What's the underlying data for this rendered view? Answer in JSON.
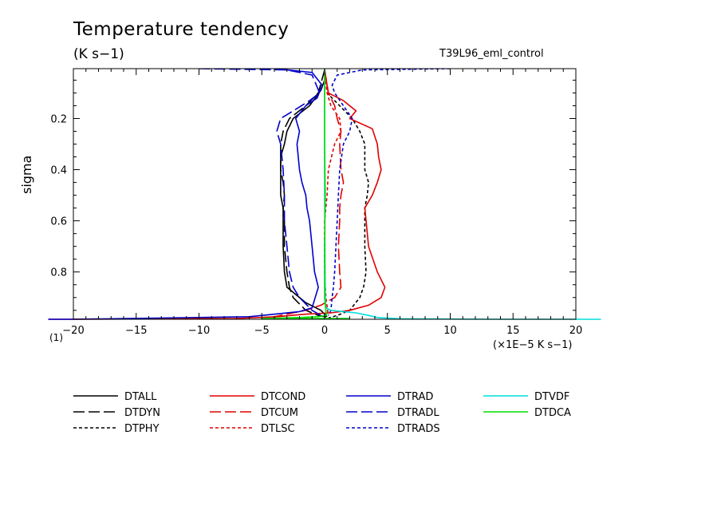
{
  "chart_data": {
    "type": "line",
    "title": "Temperature tendency",
    "units_label": "(K s−1)",
    "run_label": "T39L96_eml_control",
    "ylabel": "sigma",
    "xlabel": "(×1E−5 K s−1)",
    "footnote": "(1)",
    "xlim": [
      -20,
      22
    ],
    "ylim": [
      0.985,
      0.005
    ],
    "x_ticks": [
      -20,
      -15,
      -10,
      -5,
      0,
      5,
      10,
      15,
      20
    ],
    "x_tick_labels": [
      "−20",
      "−15",
      "−10",
      "−5",
      "0",
      "5",
      "10",
      "15",
      "20"
    ],
    "y_ticks": [
      0.2,
      0.4,
      0.6,
      0.8
    ],
    "y_tick_labels": [
      "0.2",
      "0.4",
      "0.6",
      "0.8"
    ],
    "legend_position": "bottom",
    "series": [
      {
        "name": "DTALL",
        "color": "#000000",
        "dash": "solid",
        "x": [
          0,
          0,
          -0.3,
          -1.2,
          -2.5,
          -3,
          -3.2,
          -3.5,
          -3.5,
          -3.5,
          -3.5,
          -3.3,
          -3.3,
          -3.3,
          -3.2,
          -3,
          -1.5,
          -0.3,
          0.2
        ],
        "y": [
          0.01,
          0.05,
          0.09,
          0.15,
          0.2,
          0.25,
          0.3,
          0.35,
          0.4,
          0.45,
          0.5,
          0.55,
          0.6,
          0.7,
          0.8,
          0.86,
          0.92,
          0.95,
          0.975
        ]
      },
      {
        "name": "DTDYN",
        "color": "#000000",
        "dash": "long",
        "x": [
          0,
          -0.5,
          -1.5,
          -2.8,
          -3.3,
          -3.5,
          -3.5,
          -3.3,
          -3.2,
          -3.3,
          -3.2,
          -3.2,
          -3,
          -2.8,
          -2.5,
          -1.5,
          -0.5,
          0.5
        ],
        "y": [
          0.01,
          0.1,
          0.15,
          0.2,
          0.25,
          0.3,
          0.4,
          0.45,
          0.5,
          0.55,
          0.6,
          0.7,
          0.8,
          0.86,
          0.9,
          0.95,
          0.97,
          0.98
        ]
      },
      {
        "name": "DTPHY",
        "color": "#000000",
        "dash": "short",
        "x": [
          0,
          0.2,
          1.2,
          2.2,
          2.8,
          3.2,
          3.2,
          3.5,
          3.4,
          3.2,
          3.2,
          3.2,
          3.3,
          3.1,
          2.8,
          2,
          1,
          0.3
        ],
        "y": [
          0.01,
          0.1,
          0.15,
          0.2,
          0.25,
          0.3,
          0.4,
          0.45,
          0.5,
          0.55,
          0.6,
          0.7,
          0.8,
          0.86,
          0.9,
          0.95,
          0.97,
          0.98
        ]
      },
      {
        "name": "DTCOND",
        "color": "#e00000",
        "dash": "solid",
        "x": [
          0,
          0.3,
          1.5,
          2.5,
          2,
          3.8,
          4.2,
          4.3,
          4.5,
          4.2,
          3.8,
          3.2,
          3.3,
          3.5,
          4.2,
          4.8,
          4.5,
          3.5,
          2,
          0.5,
          -1.5,
          -3.8,
          -7,
          -20,
          -22
        ],
        "y": [
          0.01,
          0.1,
          0.13,
          0.17,
          0.2,
          0.24,
          0.3,
          0.35,
          0.4,
          0.45,
          0.5,
          0.55,
          0.6,
          0.7,
          0.8,
          0.86,
          0.9,
          0.93,
          0.95,
          0.96,
          0.965,
          0.975,
          0.982,
          0.985,
          0.985
        ]
      },
      {
        "name": "DTCUM",
        "color": "#e00000",
        "dash": "long",
        "x": [
          0,
          0.3,
          0.8,
          1,
          1.3,
          1.2,
          1.3,
          1.5,
          1.3,
          1.2,
          1.2,
          1.1,
          1.2,
          1.3,
          0.8,
          -0.3,
          -1.5,
          -2.5,
          -4,
          -4.5
        ],
        "y": [
          0.01,
          0.1,
          0.15,
          0.2,
          0.25,
          0.3,
          0.4,
          0.45,
          0.5,
          0.55,
          0.6,
          0.7,
          0.8,
          0.86,
          0.9,
          0.93,
          0.95,
          0.96,
          0.975,
          0.985
        ]
      },
      {
        "name": "DTLSC",
        "color": "#e00000",
        "dash": "short",
        "x": [
          0,
          0.2,
          0.5,
          1.2,
          1.3,
          0.8,
          0.3,
          0.2,
          0,
          0,
          0.1,
          0.3
        ],
        "y": [
          0.01,
          0.1,
          0.15,
          0.2,
          0.25,
          0.3,
          0.4,
          0.5,
          0.6,
          0.8,
          0.9,
          0.97
        ]
      },
      {
        "name": "DTRAD",
        "color": "#0000cc",
        "dash": "solid",
        "x": [
          -4,
          -1,
          -0.2,
          -0.6,
          -1.5,
          -2.3,
          -2,
          -2.2,
          -2,
          -1.8,
          -1.5,
          -1.4,
          -1.2,
          -1,
          -0.8,
          -0.5,
          -1,
          -2,
          -6,
          -20,
          -22
        ],
        "y": [
          0.005,
          0.02,
          0.07,
          0.12,
          0.15,
          0.2,
          0.25,
          0.3,
          0.4,
          0.45,
          0.5,
          0.55,
          0.6,
          0.7,
          0.8,
          0.86,
          0.94,
          0.955,
          0.975,
          0.985,
          0.985
        ]
      },
      {
        "name": "DTRADL",
        "color": "#0000cc",
        "dash": "long",
        "x": [
          -10,
          -3,
          -1,
          -0.4,
          -1.2,
          -2.5,
          -3.5,
          -3.8,
          -3.5,
          -3.3,
          -3.2,
          -3.2,
          -3,
          -2.8,
          -2.5,
          -2,
          -1,
          -0.3
        ],
        "y": [
          0.005,
          0.01,
          0.03,
          0.1,
          0.13,
          0.17,
          0.2,
          0.25,
          0.3,
          0.4,
          0.5,
          0.6,
          0.7,
          0.8,
          0.86,
          0.9,
          0.95,
          0.97
        ]
      },
      {
        "name": "DTRADS",
        "color": "#0000cc",
        "dash": "short",
        "x": [
          10,
          3,
          1,
          0.6,
          0.8,
          1.5,
          2.2,
          2,
          1.5,
          1.2,
          1.1,
          1,
          0.9,
          0.8,
          0.7,
          0.6,
          0.5,
          0.3
        ],
        "y": [
          0.005,
          0.01,
          0.03,
          0.07,
          0.1,
          0.15,
          0.2,
          0.25,
          0.3,
          0.4,
          0.5,
          0.6,
          0.7,
          0.8,
          0.86,
          0.9,
          0.95,
          0.97
        ]
      },
      {
        "name": "DTVDF",
        "color": "#00dddd",
        "dash": "solid",
        "x": [
          0,
          0,
          0.05,
          0.1,
          0.5,
          1.5,
          2.5,
          3.5,
          4.2,
          6,
          14,
          22
        ],
        "y": [
          0.01,
          0.5,
          0.9,
          0.94,
          0.95,
          0.955,
          0.96,
          0.97,
          0.978,
          0.983,
          0.985,
          0.985
        ]
      },
      {
        "name": "DTDCA",
        "color": "#00dd00",
        "dash": "solid",
        "x": [
          0,
          0,
          0.05,
          0,
          0,
          0.1,
          0.15,
          -0.5,
          -2,
          -3.5,
          -5,
          0.5,
          2
        ],
        "y": [
          0.005,
          0.3,
          0.5,
          0.7,
          0.9,
          0.95,
          0.97,
          0.975,
          0.978,
          0.98,
          0.982,
          0.982,
          0.982
        ]
      }
    ]
  }
}
